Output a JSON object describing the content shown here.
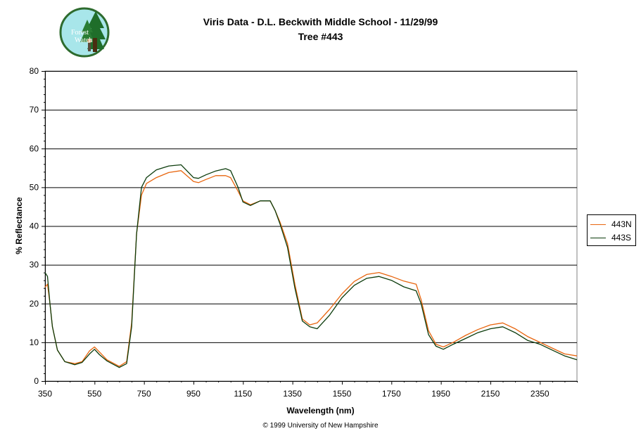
{
  "logo": {
    "line1": "Forest",
    "line2": "Watch",
    "colors": {
      "ring": "#2e6b2e",
      "sky": "#a8e6ea",
      "tree": "#1f6e2a",
      "trunk": "#4a2e10"
    }
  },
  "chart_data": {
    "type": "line",
    "title": "Viris Data - D.L. Beckwith Middle School - 11/29/99",
    "subtitle": "Tree #443",
    "xlabel": "Wavelength (nm)",
    "ylabel": "% Reflectance",
    "xlim": [
      350,
      2500
    ],
    "ylim": [
      0,
      80
    ],
    "xticks": [
      350,
      550,
      750,
      950,
      1150,
      1350,
      1550,
      1750,
      1950,
      2150,
      2350
    ],
    "yticks": [
      0,
      10,
      20,
      30,
      40,
      50,
      60,
      70,
      80
    ],
    "grid": "horizontal",
    "legend": "right",
    "series": [
      {
        "name": "443N",
        "color": "#e8650e",
        "x": [
          350,
          360,
          370,
          380,
          400,
          430,
          470,
          500,
          530,
          550,
          570,
          600,
          650,
          680,
          700,
          720,
          740,
          760,
          800,
          850,
          900,
          950,
          970,
          1000,
          1040,
          1080,
          1100,
          1130,
          1150,
          1180,
          1220,
          1260,
          1280,
          1300,
          1330,
          1360,
          1390,
          1420,
          1450,
          1500,
          1550,
          1600,
          1650,
          1700,
          1750,
          1800,
          1850,
          1870,
          1900,
          1930,
          1960,
          2000,
          2050,
          2100,
          2150,
          2200,
          2250,
          2300,
          2350,
          2400,
          2450,
          2500
        ],
        "y": [
          24.2,
          25,
          20,
          14,
          8,
          5,
          4.5,
          5,
          7.8,
          8.8,
          7.5,
          5.5,
          3.8,
          5,
          15,
          38,
          48,
          51,
          52.5,
          53.8,
          54.3,
          51.5,
          51.2,
          52,
          53,
          53,
          52.5,
          49,
          46.5,
          45.5,
          46.5,
          46.5,
          44,
          41,
          35.5,
          25,
          16,
          14.5,
          15,
          18.5,
          22.5,
          25.7,
          27.5,
          28,
          27,
          25.8,
          25,
          21,
          13,
          9.5,
          8.8,
          10,
          11.8,
          13.3,
          14.5,
          15,
          13.5,
          11.5,
          10,
          8.5,
          7,
          6.5
        ]
      },
      {
        "name": "443S",
        "color": "#0b3b0b",
        "x": [
          350,
          360,
          370,
          380,
          400,
          430,
          470,
          500,
          530,
          550,
          570,
          600,
          650,
          680,
          700,
          720,
          740,
          760,
          800,
          850,
          900,
          950,
          970,
          1000,
          1040,
          1080,
          1100,
          1130,
          1150,
          1180,
          1220,
          1260,
          1280,
          1300,
          1330,
          1360,
          1390,
          1420,
          1450,
          1500,
          1550,
          1600,
          1650,
          1700,
          1750,
          1800,
          1850,
          1870,
          1900,
          1930,
          1960,
          2000,
          2050,
          2100,
          2150,
          2200,
          2250,
          2300,
          2350,
          2400,
          2450,
          2500
        ],
        "y": [
          28,
          27,
          20,
          14,
          8,
          5,
          4.2,
          4.8,
          7,
          8.2,
          6.8,
          5.2,
          3.5,
          4.5,
          14,
          38,
          50,
          52.5,
          54.5,
          55.5,
          55.8,
          52.5,
          52.3,
          53.2,
          54.2,
          54.8,
          54.3,
          50,
          46.2,
          45.3,
          46.5,
          46.5,
          44,
          40.5,
          34.5,
          24,
          15.5,
          14,
          13.5,
          17,
          21.5,
          24.7,
          26.5,
          27,
          26,
          24.3,
          23.3,
          20,
          12,
          9,
          8.2,
          9.5,
          11,
          12.5,
          13.5,
          14,
          12.5,
          10.5,
          9.5,
          8,
          6.5,
          5.5
        ]
      }
    ]
  },
  "copyright": "© 1999 University of New Hampshire"
}
